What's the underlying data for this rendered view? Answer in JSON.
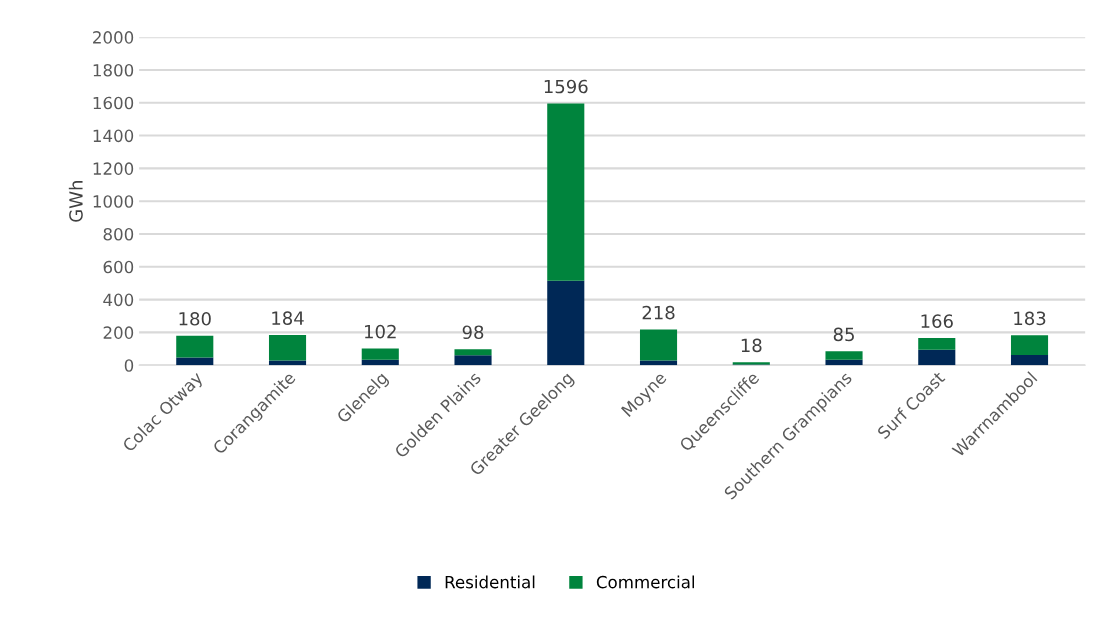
{
  "chart_data": {
    "type": "bar",
    "stacked": true,
    "ylabel": "GWh",
    "categories": [
      "Colac Otway",
      "Corangamite",
      "Glenelg",
      "Golden Plains",
      "Greater Geelong",
      "Moyne",
      "Queenscliffe",
      "Southern Grampians",
      "Surf Coast",
      "Warrnambool"
    ],
    "series": [
      {
        "name": "Residential",
        "color": "#002856",
        "values": [
          47,
          28,
          34,
          60,
          515,
          29,
          5,
          33,
          94,
          63
        ]
      },
      {
        "name": "Commercial",
        "color": "#00843d",
        "values": [
          133,
          156,
          68,
          38,
          1081,
          189,
          13,
          52,
          72,
          120
        ]
      }
    ],
    "totals": [
      "180",
      "184",
      "102",
      "98",
      "1596",
      "218",
      "18",
      "85",
      "166",
      "183"
    ],
    "ylim": [
      0,
      2000
    ],
    "yticks": [
      0,
      200,
      400,
      600,
      800,
      1000,
      1200,
      1400,
      1600,
      1800,
      2000
    ],
    "grid": "y",
    "legend": "bottom"
  }
}
